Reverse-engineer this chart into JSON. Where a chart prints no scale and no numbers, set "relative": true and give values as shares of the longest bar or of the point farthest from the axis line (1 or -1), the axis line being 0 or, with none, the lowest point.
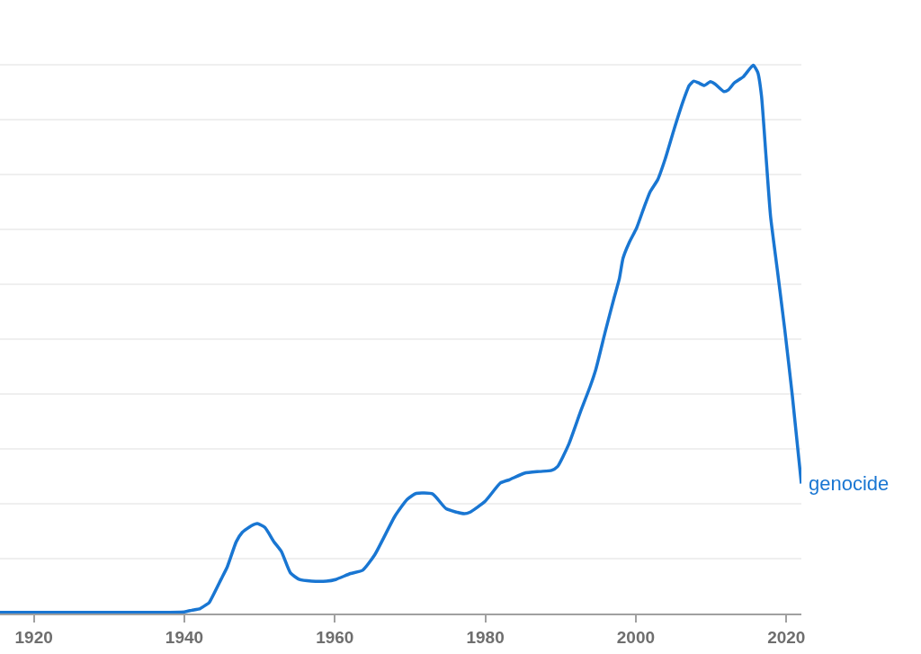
{
  "chart_data": {
    "type": "line",
    "relative": true,
    "x": [
      1915.5,
      1925,
      1935,
      1940,
      1941,
      1942.1,
      1942.9,
      1943.3,
      1944.9,
      1945.7,
      1946.9,
      1947.7,
      1948.9,
      1949.7,
      1950.7,
      1951.9,
      1952.9,
      1954.1,
      1955.3,
      1956.9,
      1958.9,
      1960.1,
      1962.1,
      1963.7,
      1965.3,
      1968,
      1969.6,
      1970.8,
      1973,
      1974.8,
      1977.2,
      1978,
      1980,
      1982,
      1983.2,
      1985.2,
      1987.2,
      1988.8,
      1989.6,
      1991.1,
      1992.7,
      1993.9,
      1994.7,
      1995.9,
      1997.1,
      1997.8,
      1998.3,
      1999.1,
      2000.1,
      2001.1,
      2001.9,
      2002.9,
      2003.9,
      2005.1,
      2006.3,
      2007.1,
      2007.7,
      2008.3,
      2009.1,
      2009.9,
      2010.5,
      2011.7,
      2012.3,
      2013.1,
      2014.3,
      2015.6,
      2016.2,
      2016.7,
      2017.3,
      2017.9,
      2018.8,
      2019.8,
      2020.8,
      2022
    ],
    "series": [
      {
        "name": "genocide",
        "color": "#1976d2",
        "values": [
          0.002,
          0.002,
          0.002,
          0.003,
          0.006,
          0.009,
          0.016,
          0.02,
          0.063,
          0.085,
          0.131,
          0.148,
          0.16,
          0.164,
          0.157,
          0.131,
          0.113,
          0.074,
          0.062,
          0.059,
          0.059,
          0.062,
          0.073,
          0.079,
          0.107,
          0.178,
          0.208,
          0.219,
          0.218,
          0.191,
          0.182,
          0.185,
          0.205,
          0.238,
          0.244,
          0.256,
          0.259,
          0.261,
          0.268,
          0.309,
          0.37,
          0.413,
          0.446,
          0.512,
          0.575,
          0.61,
          0.648,
          0.676,
          0.703,
          0.741,
          0.769,
          0.791,
          0.829,
          0.884,
          0.935,
          0.963,
          0.971,
          0.968,
          0.963,
          0.97,
          0.966,
          0.952,
          0.955,
          0.968,
          0.979,
          1,
          0.987,
          0.944,
          0.834,
          0.725,
          0.627,
          0.517,
          0.397,
          0.237
        ]
      }
    ],
    "xlim": [
      1915.5,
      2022
    ],
    "xticks": [
      1920,
      1940,
      1960,
      1980,
      2000,
      2020
    ],
    "grid": "y",
    "tick_labels": "x",
    "line_style": "solid"
  }
}
